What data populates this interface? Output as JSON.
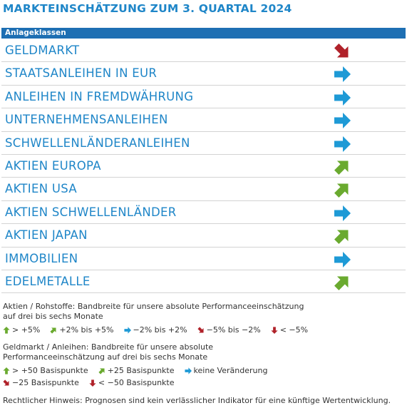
{
  "title": "MARKTEINSCHÄTZUNG ZUM 3. QUARTAL 2024",
  "table": {
    "header": "Anlageklassen",
    "rows": [
      {
        "label": "GELDMARKT"
      },
      {
        "label": "STAATSANLEIHEN IN EUR"
      },
      {
        "label": "ANLEIHEN IN FREMDWÄHRUNG"
      },
      {
        "label": "UNTERNEHMENSANLEIHEN"
      },
      {
        "label": "SCHWELLENLÄNDERANLEIHEN"
      },
      {
        "label": "AKTIEN EUROPA"
      },
      {
        "label": "AKTIEN USA"
      },
      {
        "label": "AKTIEN SCHWELLENLÄNDER"
      },
      {
        "label": "AKTIEN JAPAN"
      },
      {
        "label": "IMMOBILIEN"
      },
      {
        "label": "EDELMETALLE"
      }
    ]
  },
  "legend": {
    "equity": {
      "description": "Aktien / Rohstoffe: Bandbreite für unsere absolute Performanceeinschätzung auf drei bis sechs Monate",
      "items": [
        "> +5%",
        "+2% bis +5%",
        "−2% bis +2%",
        "−5% bis −2%",
        "< −5%"
      ]
    },
    "money": {
      "description": "Geldmarkt / Anleihen: Bandbreite für unsere absolute Performanceeinschätzung auf drei bis sechs Monate",
      "items": [
        "> +50 Basispunkte",
        "+25 Basispunkte",
        "keine Veränderung",
        "−25 Basispunkte",
        "< −50 Basispunkte"
      ]
    }
  },
  "note": "Rechtlicher Hinweis: Prognosen sind kein verlässlicher Indikator für eine künftige Wertentwicklung."
}
